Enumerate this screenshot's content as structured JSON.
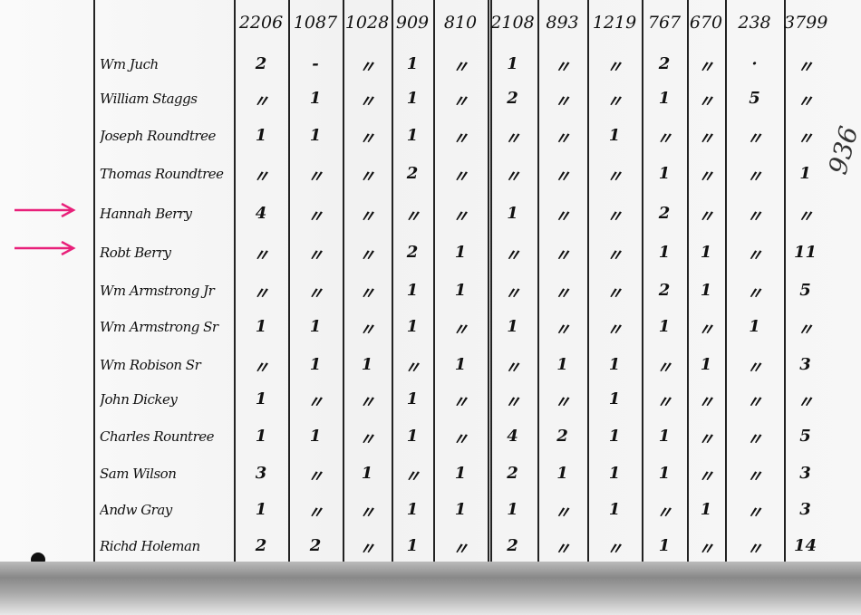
{
  "columns": [
    "2206",
    "1087",
    "1028",
    "909",
    "810",
    "2108",
    "893",
    "1219",
    "767",
    "670",
    "238",
    "3799"
  ],
  "rows": [
    {
      "name": "Wm Juch",
      "values": [
        "2",
        "-",
        "〃",
        "1",
        "〃",
        "1",
        "〃",
        "〃",
        "2",
        "〃",
        "·",
        "〃"
      ]
    },
    {
      "name": "William Staggs",
      "values": [
        "〃",
        "1",
        "〃",
        "1",
        "〃",
        "2",
        "〃",
        "〃",
        "1",
        "〃",
        "5",
        "〃"
      ]
    },
    {
      "name": "Joseph Roundtree",
      "values": [
        "1",
        "1",
        "〃",
        "1",
        "〃",
        "〃",
        "〃",
        "1",
        "〃",
        "〃",
        "〃",
        "〃"
      ]
    },
    {
      "name": "Thomas Roundtree",
      "values": [
        "〃",
        "〃",
        "〃",
        "2",
        "〃",
        "〃",
        "〃",
        "〃",
        "1",
        "〃",
        "〃",
        "1"
      ]
    },
    {
      "name": "Hannah Berry",
      "values": [
        "4",
        "〃",
        "〃",
        "〃",
        "〃",
        "1",
        "〃",
        "〃",
        "2",
        "〃",
        "〃",
        "〃"
      ]
    },
    {
      "name": "Robt Berry",
      "values": [
        "〃",
        "〃",
        "〃",
        "2",
        "1",
        "〃",
        "〃",
        "〃",
        "1",
        "1",
        "〃",
        "11"
      ]
    },
    {
      "name": "Wm Armstrong Jr",
      "values": [
        "〃",
        "〃",
        "〃",
        "1",
        "1",
        "〃",
        "〃",
        "〃",
        "2",
        "1",
        "〃",
        "5"
      ]
    },
    {
      "name": "Wm Armstrong Sr",
      "values": [
        "1",
        "1",
        "〃",
        "1",
        "〃",
        "1",
        "〃",
        "〃",
        "1",
        "〃",
        "1",
        "〃"
      ]
    },
    {
      "name": "Wm Robison Sr",
      "values": [
        "〃",
        "1",
        "1",
        "〃",
        "1",
        "〃",
        "1",
        "1",
        "〃",
        "1",
        "〃",
        "3"
      ]
    },
    {
      "name": "John Dickey",
      "values": [
        "1",
        "〃",
        "〃",
        "1",
        "〃",
        "〃",
        "〃",
        "1",
        "〃",
        "〃",
        "〃",
        "〃"
      ]
    },
    {
      "name": "Charles Rountree",
      "values": [
        "1",
        "1",
        "〃",
        "1",
        "〃",
        "4",
        "2",
        "1",
        "1",
        "〃",
        "〃",
        "5"
      ]
    },
    {
      "name": "Sam Wilson",
      "values": [
        "3",
        "〃",
        "1",
        "〃",
        "1",
        "2",
        "1",
        "1",
        "1",
        "〃",
        "〃",
        "3"
      ]
    },
    {
      "name": "Andw Gray",
      "values": [
        "1",
        "〃",
        "〃",
        "1",
        "1",
        "1",
        "〃",
        "1",
        "〃",
        "1",
        "〃",
        "3"
      ]
    },
    {
      "name": "Richd Holeman",
      "values": [
        "2",
        "2",
        "〃",
        "1",
        "〃",
        "2",
        "〃",
        "〃",
        "1",
        "〃",
        "〃",
        "14"
      ]
    }
  ],
  "margin_note": "936",
  "highlighted_rows": [
    "Hannah Berry",
    "Robt Berry"
  ],
  "arrow_color": "#e8207a",
  "icons": [
    "arrow-right-icon"
  ]
}
